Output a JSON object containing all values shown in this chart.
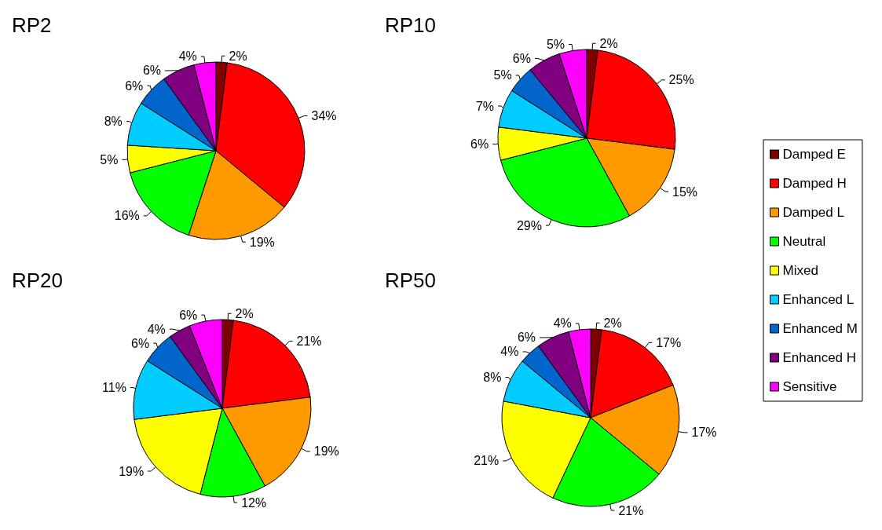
{
  "chart_data": [
    {
      "type": "pie",
      "title": "RP2",
      "categories": [
        null,
        null,
        null,
        null,
        null,
        null,
        null,
        null,
        null
      ],
      "values": [
        2,
        34,
        19,
        16,
        5,
        8,
        6,
        6,
        4
      ],
      "value_labels": [
        "2%",
        "34%",
        "19%",
        "16%",
        "5%",
        "8%",
        "6%",
        "6%",
        "4%"
      ],
      "colors": [
        "#800000",
        "#ff0000",
        "#ff9900",
        "#00ff00",
        "#ffff00",
        "#00ccff",
        "#0066cc",
        "#800080",
        "#ff00ff"
      ]
    },
    {
      "type": "pie",
      "title": "RP10",
      "categories": [
        "Damped E",
        "Damped H",
        "Damped L",
        "Neutral",
        "Mixed",
        "Enhanced L",
        "Enhanced M",
        "Enhanced H",
        "Sensitive"
      ],
      "values": [
        2,
        25,
        15,
        29,
        6,
        7,
        5,
        6,
        5
      ],
      "value_labels": [
        "2%",
        "25%",
        "15%",
        "29%",
        "6%",
        "7%",
        "5%",
        "6%",
        "5%"
      ],
      "colors": [
        "#800000",
        "#ff0000",
        "#ff9900",
        "#00ff00",
        "#ffff00",
        "#00ccff",
        "#0066cc",
        "#800080",
        "#ff00ff"
      ],
      "legend": "right"
    },
    {
      "type": "pie",
      "title": "RP20",
      "categories": [
        null,
        null,
        null,
        null,
        null,
        null,
        null,
        null,
        null
      ],
      "values": [
        2,
        21,
        19,
        12,
        19,
        11,
        6,
        4,
        6
      ],
      "value_labels": [
        "2%",
        "21%",
        "19%",
        "12%",
        "19%",
        "11%",
        "6%",
        "4%",
        "6%"
      ],
      "colors": [
        "#800000",
        "#ff0000",
        "#ff9900",
        "#00ff00",
        "#ffff00",
        "#00ccff",
        "#0066cc",
        "#800080",
        "#ff00ff"
      ]
    },
    {
      "type": "pie",
      "title": "RP50",
      "categories": [
        null,
        null,
        null,
        null,
        null,
        null,
        null,
        null,
        null
      ],
      "values": [
        2,
        17,
        17,
        21,
        21,
        8,
        4,
        6,
        4
      ],
      "value_labels": [
        "2%",
        "17%",
        "17%",
        "21%",
        "21%",
        "8%",
        "4%",
        "6%",
        "4%"
      ],
      "colors": [
        "#800000",
        "#ff0000",
        "#ff9900",
        "#00ff00",
        "#ffff00",
        "#00ccff",
        "#0066cc",
        "#800080",
        "#ff00ff"
      ]
    }
  ]
}
